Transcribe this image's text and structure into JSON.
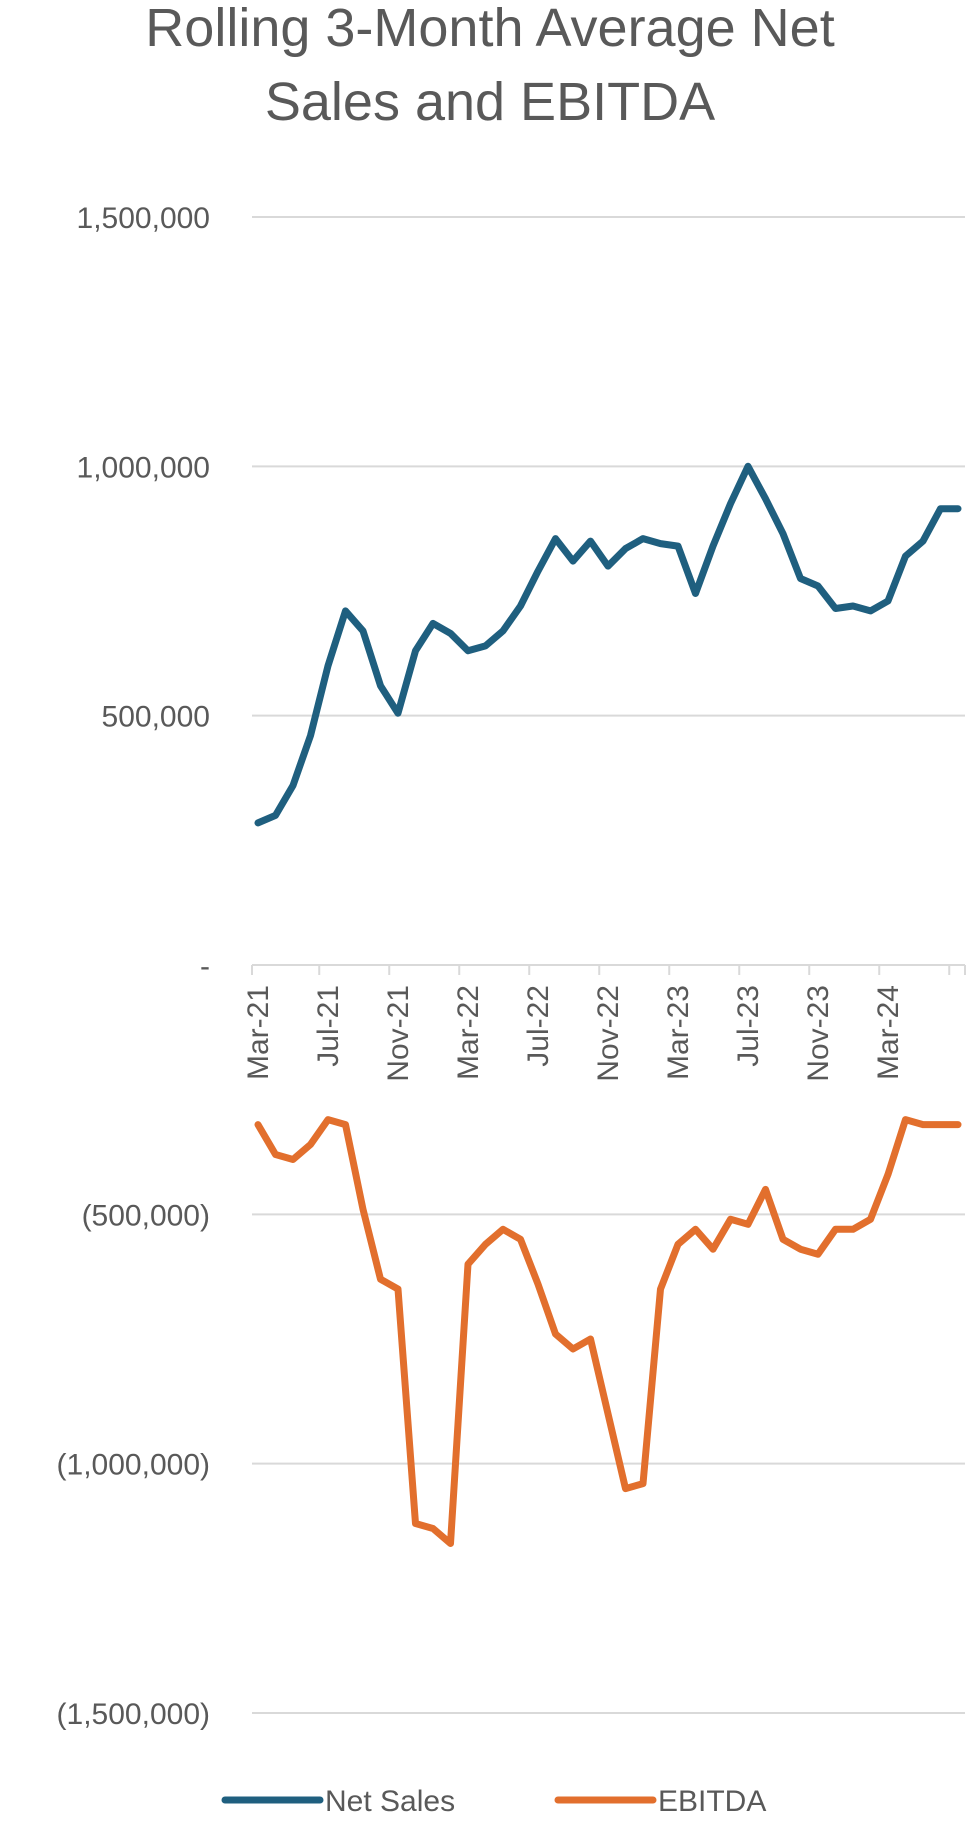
{
  "chart_data": {
    "type": "line",
    "title": "Rolling 3-Month Average Net Sales and EBITDA",
    "title_lines": [
      "Rolling 3-Month Average Net",
      "Sales and EBITDA"
    ],
    "xlabel": "",
    "ylabel": "",
    "ylim": [
      -1500000,
      1500000
    ],
    "yticks": [
      1500000,
      1000000,
      500000,
      0,
      -500000,
      -1000000,
      -1500000
    ],
    "ytick_labels": [
      "1,500,000",
      "1,000,000",
      "500,000",
      "-",
      "(500,000)",
      "(1,000,000)",
      "(1,500,000)"
    ],
    "x_tick_labels": [
      {
        "label": "Mar-21",
        "index": 0
      },
      {
        "label": "Jul-21",
        "index": 4
      },
      {
        "label": "Nov-21",
        "index": 8
      },
      {
        "label": "Mar-22",
        "index": 12
      },
      {
        "label": "Jul-22",
        "index": 16
      },
      {
        "label": "Nov-22",
        "index": 20
      },
      {
        "label": "Mar-23",
        "index": 24
      },
      {
        "label": "Jul-23",
        "index": 28
      },
      {
        "label": "Nov-23",
        "index": 32
      },
      {
        "label": "Mar-24",
        "index": 36
      }
    ],
    "x_count": 41,
    "grid": true,
    "legend": "bottom",
    "series": [
      {
        "name": "Net Sales",
        "color": "#1f5f7f",
        "values": [
          285000,
          300000,
          360000,
          460000,
          600000,
          710000,
          670000,
          560000,
          505000,
          630000,
          685000,
          665000,
          630000,
          640000,
          670000,
          720000,
          790000,
          855000,
          810000,
          850000,
          800000,
          835000,
          855000,
          845000,
          840000,
          745000,
          840000,
          925000,
          1000000,
          935000,
          865000,
          775000,
          760000,
          715000,
          720000,
          710000,
          730000,
          820000,
          850000,
          915000,
          915000
        ]
      },
      {
        "name": "EBITDA",
        "color": "#e26f2d",
        "values": [
          -320000,
          -380000,
          -390000,
          -360000,
          -310000,
          -320000,
          -490000,
          -630000,
          -650000,
          -1120000,
          -1130000,
          -1160000,
          -600000,
          -560000,
          -530000,
          -550000,
          -640000,
          -740000,
          -770000,
          -750000,
          -900000,
          -1050000,
          -1040000,
          -650000,
          -560000,
          -530000,
          -570000,
          -510000,
          -520000,
          -450000,
          -550000,
          -570000,
          -580000,
          -530000,
          -530000,
          -510000,
          -420000,
          -310000,
          -320000,
          -320000,
          -320000
        ]
      }
    ]
  }
}
